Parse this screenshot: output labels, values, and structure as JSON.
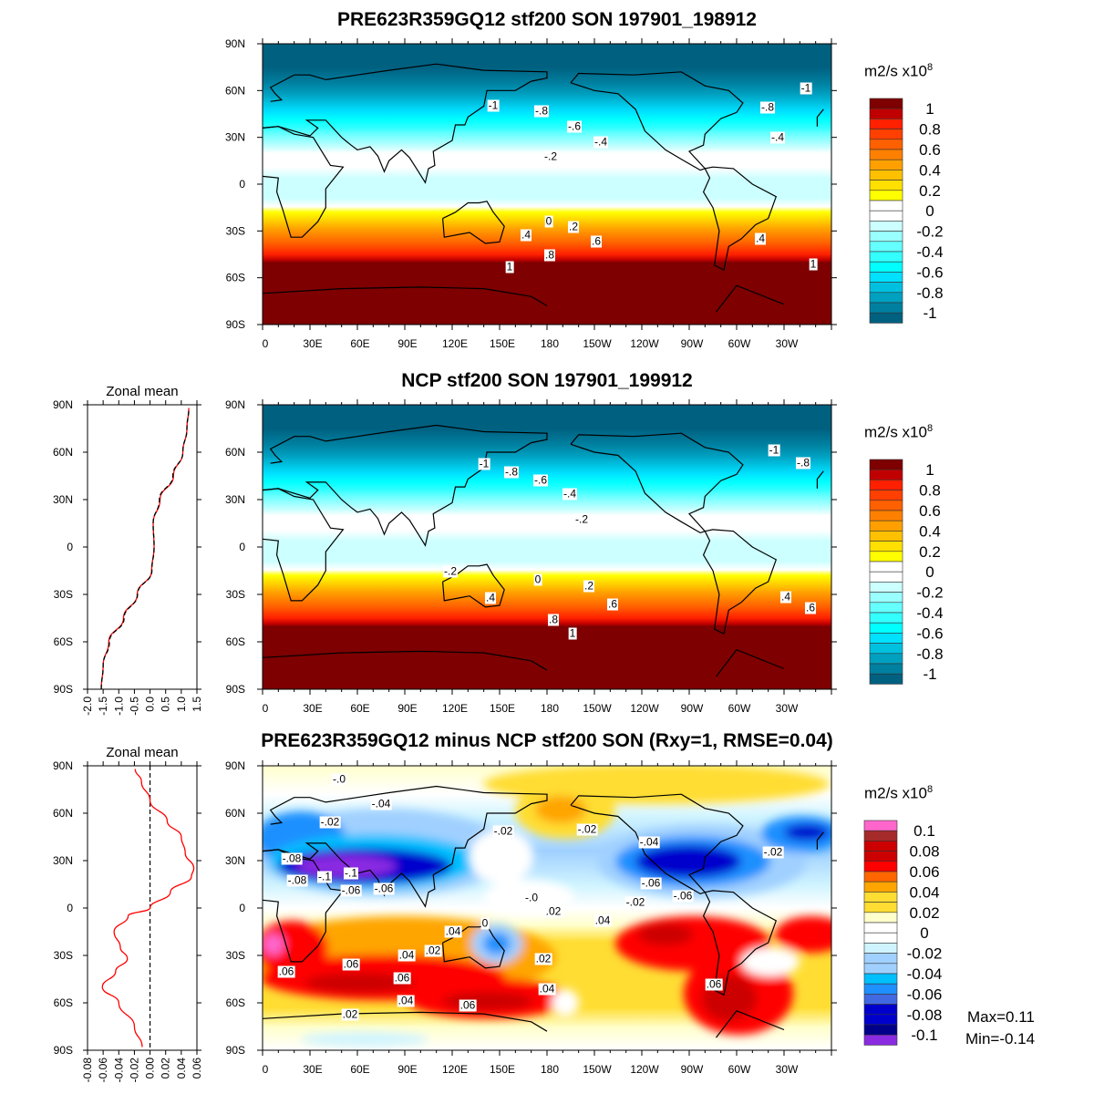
{
  "panels": {
    "top": {
      "title": "PRE623R359GQ12 stf200 SON 197901_198912"
    },
    "middle": {
      "title": "NCP stf200 SON 197901_199912",
      "zonal_title": "Zonal mean"
    },
    "bottom": {
      "title": "PRE623R359GQ12 minus NCP stf200 SON (Rxy=1, RMSE=0.04)",
      "zonal_title": "Zonal mean",
      "max_label": "Max=0.11",
      "min_label": "Min=-0.14"
    }
  },
  "units": {
    "base": "m2/s x10",
    "exp": "8"
  },
  "lon_labels": [
    "0",
    "30E",
    "60E",
    "90E",
    "120E",
    "150E",
    "180",
    "150W",
    "120W",
    "90W",
    "60W",
    "30W"
  ],
  "lat_labels": [
    "90N",
    "60N",
    "30N",
    "0",
    "30S",
    "60S",
    "90S"
  ],
  "colorbar_main": {
    "labels": [
      "1",
      "0.8",
      "0.6",
      "0.4",
      "0.2",
      "0",
      "-0.2",
      "-0.4",
      "-0.6",
      "-0.8",
      "-1"
    ],
    "colors": [
      "#7e0000",
      "#c00000",
      "#ff2000",
      "#ff4000",
      "#ff6000",
      "#ff8000",
      "#ffa000",
      "#ffc000",
      "#ffe000",
      "#ffff00",
      "#ffffff",
      "#ffffff",
      "#ccffff",
      "#99ffff",
      "#66ffff",
      "#33ffff",
      "#00ffff",
      "#00e0ff",
      "#00c0e0",
      "#00a0c0",
      "#0080a0",
      "#006080"
    ]
  },
  "colorbar_diff": {
    "labels": [
      "0.1",
      "0.08",
      "0.06",
      "0.04",
      "0.02",
      "0",
      "-0.02",
      "-0.04",
      "-0.06",
      "-0.08",
      "-0.1"
    ],
    "colors": [
      "#ff66cc",
      "#a52a2a",
      "#cc0000",
      "#cc0000",
      "#ff0000",
      "#ff6600",
      "#ffa500",
      "#ffdd33",
      "#ffdd33",
      "#ffffcc",
      "#ffffff",
      "#ffffff",
      "#d0f4ff",
      "#a0d0ff",
      "#a0d0ff",
      "#00bfff",
      "#1e90ff",
      "#4169e1",
      "#0000cd",
      "#0000cd",
      "#00008b",
      "#8a2be2"
    ]
  },
  "contour_labels": {
    "top": [
      "-1",
      "-.8",
      "-.6",
      "-.4",
      "-.2",
      "-.8",
      "-.4",
      "-1",
      "0",
      ".2",
      ".4",
      ".6",
      ".8",
      "1",
      ".4",
      "1"
    ],
    "middle": [
      "-1",
      "-.8",
      "-.6",
      "-.4",
      "-.2",
      "-1",
      "-.8",
      "-.2",
      "0",
      ".2",
      ".4",
      ".6",
      ".8",
      "1",
      ".4",
      ".6"
    ],
    "bottom": [
      "-.0",
      "-.04",
      "-.02",
      "-.02",
      "-.08",
      "-.08",
      "-.1",
      "-.1",
      "-.06",
      "-.06",
      "-.0",
      "-.02",
      "-.04",
      "-.06",
      "-.06",
      "-.02",
      "-.02",
      ".02",
      ".04",
      "0",
      ".04",
      ".02",
      ".04",
      ".06",
      ".06",
      ".06",
      ".04",
      ".06",
      ".02",
      ".02",
      ".04",
      ".06"
    ]
  },
  "chart_data": [
    {
      "type": "line",
      "title": "Zonal mean",
      "x_tick_labels": [
        "-2.0",
        "-1.5",
        "-1.0",
        "-0.5",
        "0.0",
        "0.5",
        "1.0",
        "1.5"
      ],
      "xlim": [
        -2.0,
        1.5
      ],
      "y_tick_labels": [
        "90N",
        "60N",
        "30N",
        "0",
        "30S",
        "60S",
        "90S"
      ],
      "ylim": [
        -90,
        90
      ],
      "lat": [
        -90,
        -75,
        -60,
        -45,
        -30,
        -15,
        0,
        15,
        30,
        45,
        60,
        75,
        88
      ],
      "series": [
        {
          "color": "#ff0000",
          "style": "solid",
          "values": [
            -1.56,
            -1.5,
            -1.32,
            -0.85,
            -0.41,
            0.05,
            0.13,
            0.1,
            0.32,
            0.75,
            1.05,
            1.18,
            1.24
          ]
        },
        {
          "color": "#000000",
          "style": "dashed",
          "values": [
            -1.56,
            -1.5,
            -1.3,
            -0.83,
            -0.4,
            0.06,
            0.13,
            0.1,
            0.3,
            0.73,
            1.05,
            1.18,
            1.24
          ]
        }
      ]
    },
    {
      "type": "line",
      "title": "Zonal mean",
      "x_tick_labels": [
        "-0.08",
        "-0.06",
        "-0.04",
        "-0.02",
        "0.00",
        "0.02",
        "0.04",
        "0.06"
      ],
      "xlim": [
        -0.08,
        0.06
      ],
      "y_tick_labels": [
        "90N",
        "60N",
        "30N",
        "0",
        "30S",
        "60S",
        "90S"
      ],
      "ylim": [
        -90,
        90
      ],
      "lat": [
        -88,
        -75,
        -60,
        -50,
        -40,
        -32,
        -25,
        -15,
        -5,
        0,
        10,
        20,
        25,
        35,
        45,
        55,
        68,
        80,
        88
      ],
      "series": [
        {
          "color": "#ff0000",
          "style": "solid",
          "values": [
            -0.01,
            -0.02,
            -0.04,
            -0.061,
            -0.044,
            -0.029,
            -0.038,
            -0.046,
            -0.028,
            0,
            0.026,
            0.053,
            0.056,
            0.045,
            0.04,
            0.022,
            0,
            -0.011,
            -0.019
          ]
        }
      ],
      "reference_line": {
        "x": 0,
        "style": "dashed",
        "color": "#000000"
      }
    }
  ]
}
